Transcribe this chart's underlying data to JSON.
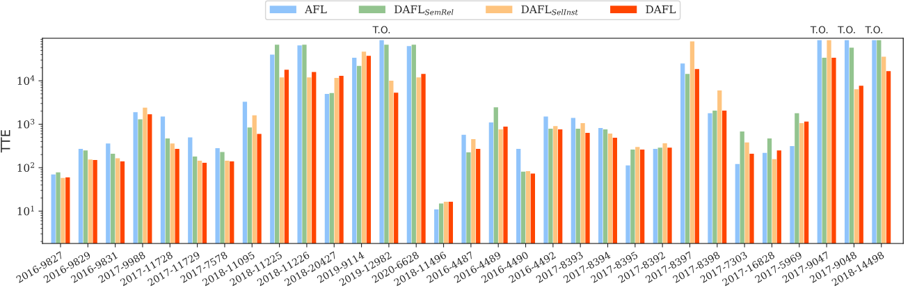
{
  "chart_data": {
    "type": "bar",
    "ylabel": "TTE",
    "log": true,
    "legend": "top",
    "grid": false,
    "categories": [
      "2016-9827",
      "2016-9829",
      "2016-9831",
      "2017-9988",
      "2017-11728",
      "2017-11729",
      "2017-7578",
      "2018-11095",
      "2018-11225",
      "2018-11226",
      "2018-20427",
      "2019-9114",
      "2019-12982",
      "2020-6628",
      "2018-11496",
      "2016-4487",
      "2016-4489",
      "2016-4490",
      "2016-4492",
      "2017-8393",
      "2017-8394",
      "2017-8395",
      "2017-8392",
      "2017-8397",
      "2017-8398",
      "2017-7303",
      "2017-16828",
      "2017-5969",
      "2017-9047",
      "2017-9048",
      "2018-14498"
    ],
    "series": [
      {
        "name": "AFL",
        "color": "#90c4fb",
        "values": [
          70,
          270,
          360,
          1900,
          1500,
          500,
          280,
          3300,
          40000,
          65000,
          5000,
          34000,
          86400,
          63000,
          11,
          570,
          1100,
          270,
          1500,
          1400,
          820,
          113,
          270,
          25000,
          1800,
          121,
          220,
          315,
          86400,
          86400,
          86400
        ]
      },
      {
        "name": "DAFL$_{SemRel}$",
        "color": "#93c48f",
        "values": [
          78,
          250,
          210,
          1300,
          470,
          180,
          230,
          840,
          68000,
          68000,
          5200,
          22000,
          68000,
          68000,
          15,
          226,
          2450,
          81,
          790,
          790,
          760,
          260,
          290,
          14400,
          2050,
          680,
          470,
          1800,
          34000,
          58000,
          86400
        ]
      },
      {
        "name": "DAFL$_{SelInst}$",
        "color": "#fec47f",
        "values": [
          58,
          155,
          165,
          2400,
          360,
          145,
          145,
          1600,
          12000,
          12000,
          11600,
          47000,
          10000,
          12000,
          16.5,
          455,
          760,
          83,
          910,
          1060,
          610,
          300,
          365,
          81000,
          6000,
          380,
          157,
          1060,
          86400,
          6400,
          36000
        ]
      },
      {
        "name": "DAFL",
        "color": "#ff4500",
        "values": [
          60,
          150,
          140,
          1700,
          270,
          130,
          140,
          600,
          18000,
          16000,
          13000,
          37600,
          5300,
          14400,
          16.5,
          270,
          880,
          73,
          760,
          630,
          490,
          260,
          290,
          18700,
          2050,
          210,
          250,
          1150,
          34000,
          7700,
          16700
        ]
      }
    ],
    "ylim": [
      1.8,
      95000
    ],
    "yticks": [
      {
        "value": 10,
        "label": "10$^{1}$"
      },
      {
        "value": 100,
        "label": "10$^{2}$"
      },
      {
        "value": 1000,
        "label": "10$^{3}$"
      },
      {
        "value": 10000,
        "label": "10$^{4}$"
      }
    ],
    "annotations": [
      "T.O.",
      "T.O.",
      "T.O.",
      "T.O."
    ]
  }
}
